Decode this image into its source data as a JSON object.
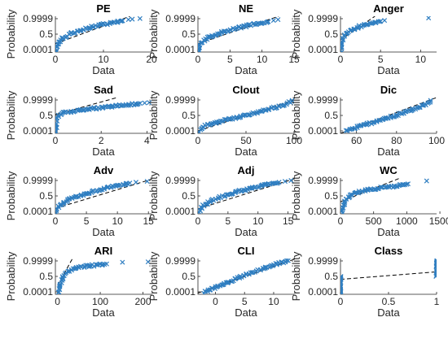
{
  "figure": {
    "marker_color": "#2f7ec1",
    "reference_line_color": "#000000",
    "marker_style": "x"
  },
  "chart_data": [
    {
      "type": "scatter",
      "plot_kind": "normal probability plot",
      "title": "PE",
      "xlabel": "Data",
      "ylabel": "Probability",
      "xlim": [
        0,
        20
      ],
      "xticks": [
        "0",
        "10",
        "20"
      ],
      "yticks": [
        "0.0001",
        "0.5",
        "0.9999"
      ],
      "yticks_z": [
        -3.719,
        0,
        3.719
      ],
      "ylim_z": [
        -4.3,
        4.3
      ],
      "curve": [
        [
          0.1,
          -4.1
        ],
        [
          0.4,
          -2.6
        ],
        [
          1.5,
          -1.0
        ],
        [
          3,
          0.0
        ],
        [
          6,
          1.2
        ],
        [
          9,
          2.1
        ],
        [
          12,
          2.8
        ],
        [
          14,
          3.2
        ]
      ],
      "outliers": [
        [
          15.2,
          3.5
        ],
        [
          16.0,
          3.6
        ],
        [
          17.6,
          3.75
        ]
      ],
      "reference_line": [
        [
          0,
          -2.3
        ],
        [
          15.5,
          4.3
        ]
      ]
    },
    {
      "type": "scatter",
      "plot_kind": "normal probability plot",
      "title": "NE",
      "xlabel": "Data",
      "ylabel": "Probability",
      "xlim": [
        0,
        15
      ],
      "xticks": [
        "0",
        "5",
        "10",
        "15"
      ],
      "yticks": [
        "0.0001",
        "0.5",
        "0.9999"
      ],
      "yticks_z": [
        -3.719,
        0,
        3.719
      ],
      "ylim_z": [
        -4.3,
        4.3
      ],
      "curve": [
        [
          0.1,
          -4.1
        ],
        [
          0.3,
          -2.4
        ],
        [
          1.5,
          -0.9
        ],
        [
          3,
          0.1
        ],
        [
          5,
          1.0
        ],
        [
          7,
          1.8
        ],
        [
          9,
          2.5
        ],
        [
          11,
          3.0
        ]
      ],
      "outliers": [
        [
          11.8,
          3.3
        ],
        [
          12.5,
          3.5
        ]
      ],
      "reference_line": [
        [
          0,
          -2.3
        ],
        [
          12.6,
          4.3
        ]
      ]
    },
    {
      "type": "scatter",
      "plot_kind": "normal probability plot",
      "title": "Anger",
      "xlabel": "Data",
      "ylabel": "Probability",
      "xlim": [
        0,
        12
      ],
      "xticks": [
        "0",
        "5",
        "10"
      ],
      "yticks": [
        "0.0001",
        "0.5",
        "0.9999"
      ],
      "yticks_z": [
        -3.719,
        0,
        3.719
      ],
      "ylim_z": [
        -4.3,
        4.3
      ],
      "curve": [
        [
          0.05,
          -4.1
        ],
        [
          0.1,
          -2.2
        ],
        [
          0.4,
          -0.6
        ],
        [
          1,
          0.6
        ],
        [
          2,
          1.5
        ],
        [
          3,
          2.3
        ],
        [
          4,
          2.8
        ],
        [
          5,
          3.1
        ]
      ],
      "outliers": [
        [
          5.5,
          3.3
        ],
        [
          11.0,
          3.9
        ]
      ],
      "reference_line": [
        [
          0,
          -1.4
        ],
        [
          4.3,
          4.3
        ]
      ]
    },
    {
      "type": "scatter",
      "plot_kind": "normal probability plot",
      "title": "Sad",
      "xlabel": "Data",
      "ylabel": "Probability",
      "xlim": [
        0,
        4.2
      ],
      "xticks": [
        "0",
        "2",
        "4"
      ],
      "yticks": [
        "0.0001",
        "0.5",
        "0.9999"
      ],
      "yticks_z": [
        -3.719,
        0,
        3.719
      ],
      "ylim_z": [
        -4.3,
        4.3
      ],
      "curve": [
        [
          0.02,
          -4.1
        ],
        [
          0.04,
          -2.2
        ],
        [
          0.06,
          -0.5
        ],
        [
          0.3,
          0.5
        ],
        [
          1,
          1.2
        ],
        [
          2,
          1.9
        ],
        [
          3,
          2.5
        ],
        [
          3.7,
          2.9
        ]
      ],
      "outliers": [
        [
          3.9,
          3.0
        ],
        [
          4.1,
          3.1
        ]
      ],
      "reference_line": [
        [
          0,
          0.2
        ],
        [
          2.7,
          4.3
        ]
      ]
    },
    {
      "type": "scatter",
      "plot_kind": "normal probability plot",
      "title": "Clout",
      "xlabel": "Data",
      "ylabel": "Probability",
      "xlim": [
        0,
        100
      ],
      "xticks": [
        "0",
        "50",
        "100"
      ],
      "yticks": [
        "0.0001",
        "0.5",
        "0.9999"
      ],
      "yticks_z": [
        -3.719,
        0,
        3.719
      ],
      "ylim_z": [
        -4.3,
        4.3
      ],
      "curve": [
        [
          2,
          -3.8
        ],
        [
          8,
          -2.4
        ],
        [
          25,
          -1.3
        ],
        [
          45,
          -0.2
        ],
        [
          65,
          0.9
        ],
        [
          80,
          1.9
        ],
        [
          92,
          2.8
        ],
        [
          98,
          3.6
        ]
      ],
      "outliers": [],
      "reference_line": [
        [
          0,
          -3.7
        ],
        [
          100,
          3.7
        ]
      ]
    },
    {
      "type": "scatter",
      "plot_kind": "normal probability plot",
      "title": "Dic",
      "xlabel": "Data",
      "ylabel": "Probability",
      "xlim": [
        52,
        100
      ],
      "xticks": [
        "60",
        "80",
        "100"
      ],
      "yticks": [
        "0.0001",
        "0.5",
        "0.9999"
      ],
      "yticks_z": [
        -3.719,
        0,
        3.719
      ],
      "ylim_z": [
        -4.3,
        4.3
      ],
      "curve": [
        [
          55,
          -3.8
        ],
        [
          60,
          -2.8
        ],
        [
          68,
          -1.7
        ],
        [
          75,
          -0.7
        ],
        [
          82,
          0.4
        ],
        [
          88,
          1.4
        ],
        [
          93,
          2.4
        ],
        [
          97,
          3.6
        ]
      ],
      "outliers": [],
      "reference_line": [
        [
          52,
          -4.3
        ],
        [
          100,
          4.3
        ]
      ]
    },
    {
      "type": "scatter",
      "plot_kind": "normal probability plot",
      "title": "Adv",
      "xlabel": "Data",
      "ylabel": "Probability",
      "xlim": [
        0,
        15.5
      ],
      "xticks": [
        "0",
        "5",
        "10",
        "15"
      ],
      "yticks": [
        "0.0001",
        "0.5",
        "0.9999"
      ],
      "yticks_z": [
        -3.719,
        0,
        3.719
      ],
      "ylim_z": [
        -4.3,
        4.3
      ],
      "curve": [
        [
          0.1,
          -4.0
        ],
        [
          0.5,
          -2.5
        ],
        [
          2,
          -1.0
        ],
        [
          4,
          0.1
        ],
        [
          6,
          1.0
        ],
        [
          8,
          1.8
        ],
        [
          10,
          2.5
        ],
        [
          12,
          3.1
        ]
      ],
      "outliers": [
        [
          13.0,
          3.3
        ],
        [
          14.8,
          3.5
        ]
      ],
      "reference_line": [
        [
          0,
          -3.0
        ],
        [
          15.5,
          4.0
        ]
      ]
    },
    {
      "type": "scatter",
      "plot_kind": "normal probability plot",
      "title": "Adj",
      "xlabel": "Data",
      "ylabel": "Probability",
      "xlim": [
        0,
        16
      ],
      "xticks": [
        "0",
        "5",
        "10",
        "15"
      ],
      "yticks": [
        "0.0001",
        "0.5",
        "0.9999"
      ],
      "yticks_z": [
        -3.719,
        0,
        3.719
      ],
      "ylim_z": [
        -4.3,
        4.3
      ],
      "curve": [
        [
          0.2,
          -4.0
        ],
        [
          0.7,
          -2.5
        ],
        [
          2.5,
          -1.0
        ],
        [
          4.5,
          0.1
        ],
        [
          6.5,
          1.0
        ],
        [
          8.5,
          1.8
        ],
        [
          11,
          2.6
        ],
        [
          13.5,
          3.3
        ]
      ],
      "outliers": [
        [
          14.5,
          3.5
        ],
        [
          15.5,
          3.7
        ]
      ],
      "reference_line": [
        [
          0,
          -3.1
        ],
        [
          16,
          4.1
        ]
      ]
    },
    {
      "type": "scatter",
      "plot_kind": "normal probability plot",
      "title": "WC",
      "xlabel": "Data",
      "ylabel": "Probability",
      "xlim": [
        0,
        1450
      ],
      "xticks": [
        "0",
        "500",
        "1000",
        "1500"
      ],
      "yticks": [
        "0.0001",
        "0.5",
        "0.9999"
      ],
      "yticks_z": [
        -3.719,
        0,
        3.719
      ],
      "ylim_z": [
        -4.3,
        4.3
      ],
      "curve": [
        [
          20,
          -4.0
        ],
        [
          40,
          -2.4
        ],
        [
          80,
          -0.9
        ],
        [
          150,
          0.2
        ],
        [
          300,
          1.1
        ],
        [
          500,
          1.7
        ],
        [
          800,
          2.3
        ],
        [
          1000,
          2.8
        ]
      ],
      "outliers": [
        [
          1020,
          2.9
        ],
        [
          1300,
          3.6
        ]
      ],
      "reference_line": [
        [
          0,
          -1.4
        ],
        [
          900,
          4.3
        ]
      ]
    },
    {
      "type": "scatter",
      "plot_kind": "normal probability plot",
      "title": "ARI",
      "xlabel": "Data",
      "ylabel": "Probability",
      "xlim": [
        -5,
        220
      ],
      "xticks": [
        "0",
        "100",
        "200"
      ],
      "yticks": [
        "0.0001",
        "0.5",
        "0.9999"
      ],
      "yticks_z": [
        -3.719,
        0,
        3.719
      ],
      "ylim_z": [
        -4.3,
        4.3
      ],
      "curve": [
        [
          2,
          -4.0
        ],
        [
          5,
          -2.4
        ],
        [
          10,
          -0.9
        ],
        [
          15,
          0.2
        ],
        [
          25,
          1.3
        ],
        [
          40,
          2.0
        ],
        [
          70,
          2.5
        ],
        [
          110,
          2.9
        ]
      ],
      "outliers": [
        [
          115,
          3.0
        ],
        [
          152,
          3.4
        ],
        [
          212,
          3.5
        ]
      ],
      "reference_line": [
        [
          0,
          -2.2
        ],
        [
          35,
          4.3
        ]
      ]
    },
    {
      "type": "scatter",
      "plot_kind": "normal probability plot",
      "title": "CLI",
      "xlabel": "Data",
      "ylabel": "Probability",
      "xlim": [
        -3,
        13.5
      ],
      "xticks": [
        "0",
        "5",
        "10"
      ],
      "yticks": [
        "0.0001",
        "0.5",
        "0.9999"
      ],
      "yticks_z": [
        -3.719,
        0,
        3.719
      ],
      "ylim_z": [
        -4.3,
        4.3
      ],
      "curve": [
        [
          -2,
          -3.9
        ],
        [
          0,
          -2.6
        ],
        [
          2,
          -1.4
        ],
        [
          4,
          -0.3
        ],
        [
          6,
          0.8
        ],
        [
          8,
          1.8
        ],
        [
          10,
          2.8
        ],
        [
          12.5,
          3.8
        ]
      ],
      "outliers": [],
      "reference_line": [
        [
          -3,
          -4.0
        ],
        [
          13.5,
          4.1
        ]
      ]
    },
    {
      "type": "scatter",
      "plot_kind": "normal probability plot",
      "title": "Class",
      "xlabel": "Data",
      "ylabel": "Probability",
      "xlim": [
        0,
        1
      ],
      "xticks": [
        "0",
        "0.5",
        "1"
      ],
      "yticks": [
        "0.0001",
        "0.5",
        "0.9999"
      ],
      "yticks_z": [
        -3.719,
        0,
        3.719
      ],
      "ylim_z": [
        -4.3,
        4.3
      ],
      "curve": [],
      "vertical_clusters": [
        [
          0,
          -4.1,
          0.0
        ],
        [
          1,
          0.0,
          3.9
        ]
      ],
      "outliers": [],
      "reference_line": [
        [
          0,
          -0.7
        ],
        [
          1,
          1.1
        ]
      ]
    }
  ]
}
